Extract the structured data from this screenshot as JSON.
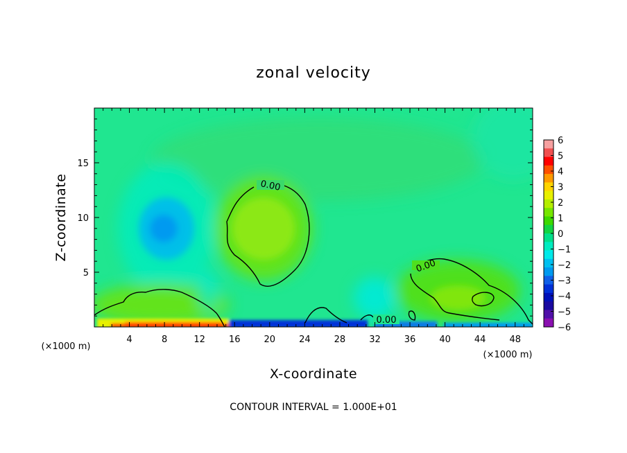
{
  "chart_data": {
    "type": "heatmap",
    "title": "zonal velocity",
    "xlabel": "X-coordinate",
    "ylabel": "Z-coordinate",
    "x_unit": "(×1000 m)",
    "z_unit": "(×1000 m)",
    "xlim": [
      0,
      50
    ],
    "ylim": [
      0,
      20
    ],
    "x_ticks": [
      4,
      8,
      12,
      16,
      20,
      24,
      28,
      32,
      36,
      40,
      44,
      48
    ],
    "y_ticks": [
      5,
      10,
      15
    ],
    "colorbar": {
      "ticks": [
        6,
        5,
        4,
        3,
        2,
        1,
        0,
        -1,
        -2,
        -3,
        -4,
        -5,
        -6
      ],
      "range": [
        -6,
        6
      ],
      "colors": [
        "#f6a0a0",
        "#f05050",
        "#ff0000",
        "#ff5000",
        "#ff9a00",
        "#ffd400",
        "#e8f000",
        "#b4ee00",
        "#76e600",
        "#3cd900",
        "#12d442",
        "#00e08a",
        "#00ecc0",
        "#00eaea",
        "#00c0f0",
        "#009af0",
        "#1060e8",
        "#0030d8",
        "#0010b8",
        "#1a0aa0",
        "#5010a8",
        "#8a10b0"
      ]
    },
    "field_features": [
      {
        "name": "negative-core-upper-left",
        "x": 9,
        "z": 9,
        "value": -2.5
      },
      {
        "name": "positive-cell-center",
        "x": 19,
        "z": 8.5,
        "value": 0.8
      },
      {
        "name": "positive-cell-right",
        "x": 42,
        "z": 3,
        "value": 0.5
      },
      {
        "name": "surface-jet-strong-positive",
        "x": 9,
        "z": 0.2,
        "value": 4
      },
      {
        "name": "surface-strong-negative",
        "x": 22,
        "z": 0.2,
        "value": -5
      }
    ],
    "contour_labels": [
      "0.00",
      "0.00",
      "0.00"
    ],
    "contour_interval": "CONTOUR INTERVAL = 1.000E+01"
  }
}
